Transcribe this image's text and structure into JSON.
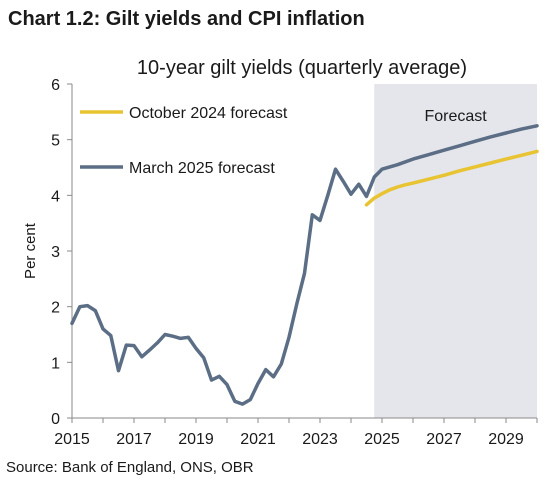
{
  "heading": "Chart 1.2: Gilt yields and CPI inflation",
  "source": "Source: Bank of England, ONS, OBR",
  "chart_data": {
    "type": "line",
    "title": "10-year gilt yields (quarterly average)",
    "xlabel": "",
    "ylabel": "Per cent",
    "xlim": [
      2015,
      2030
    ],
    "ylim": [
      0,
      6
    ],
    "yticks": [
      0,
      1,
      2,
      3,
      4,
      5,
      6
    ],
    "xticks": [
      2015,
      2017,
      2019,
      2021,
      2023,
      2025,
      2027,
      2029
    ],
    "grid": false,
    "legend_position": "top-left",
    "shaded_region": {
      "label": "Forecast",
      "x_start": 2024.75,
      "x_end": 2030,
      "color": "#e5e6ec"
    },
    "series": [
      {
        "name": "October 2024 forecast",
        "color": "#e8c332",
        "x": [
          2024.5,
          2024.75,
          2025,
          2025.25,
          2025.5,
          2025.75,
          2026,
          2026.5,
          2027,
          2027.5,
          2028,
          2028.5,
          2029,
          2029.5,
          2030
        ],
        "y": [
          3.83,
          3.95,
          4.03,
          4.1,
          4.15,
          4.19,
          4.22,
          4.29,
          4.36,
          4.44,
          4.51,
          4.58,
          4.65,
          4.72,
          4.79
        ]
      },
      {
        "name": "March 2025 forecast",
        "color": "#5b6e85",
        "x": [
          2015,
          2015.25,
          2015.5,
          2015.75,
          2016,
          2016.25,
          2016.5,
          2016.75,
          2017,
          2017.25,
          2017.5,
          2017.75,
          2018,
          2018.25,
          2018.5,
          2018.75,
          2019,
          2019.25,
          2019.5,
          2019.75,
          2020,
          2020.25,
          2020.5,
          2020.75,
          2021,
          2021.25,
          2021.5,
          2021.75,
          2022,
          2022.25,
          2022.5,
          2022.75,
          2023,
          2023.25,
          2023.5,
          2023.75,
          2024,
          2024.25,
          2024.5,
          2024.75,
          2025,
          2025.5,
          2026,
          2026.5,
          2027,
          2027.5,
          2028,
          2028.5,
          2029,
          2029.5,
          2030
        ],
        "y": [
          1.7,
          2.0,
          2.02,
          1.93,
          1.6,
          1.48,
          0.85,
          1.31,
          1.3,
          1.1,
          1.22,
          1.35,
          1.5,
          1.47,
          1.43,
          1.45,
          1.25,
          1.08,
          0.68,
          0.75,
          0.6,
          0.3,
          0.25,
          0.33,
          0.62,
          0.87,
          0.74,
          0.97,
          1.45,
          2.05,
          2.6,
          3.65,
          3.55,
          4.0,
          4.47,
          4.25,
          4.02,
          4.2,
          3.98,
          4.33,
          4.47,
          4.55,
          4.65,
          4.73,
          4.81,
          4.89,
          4.97,
          5.05,
          5.12,
          5.19,
          5.25
        ]
      }
    ]
  }
}
